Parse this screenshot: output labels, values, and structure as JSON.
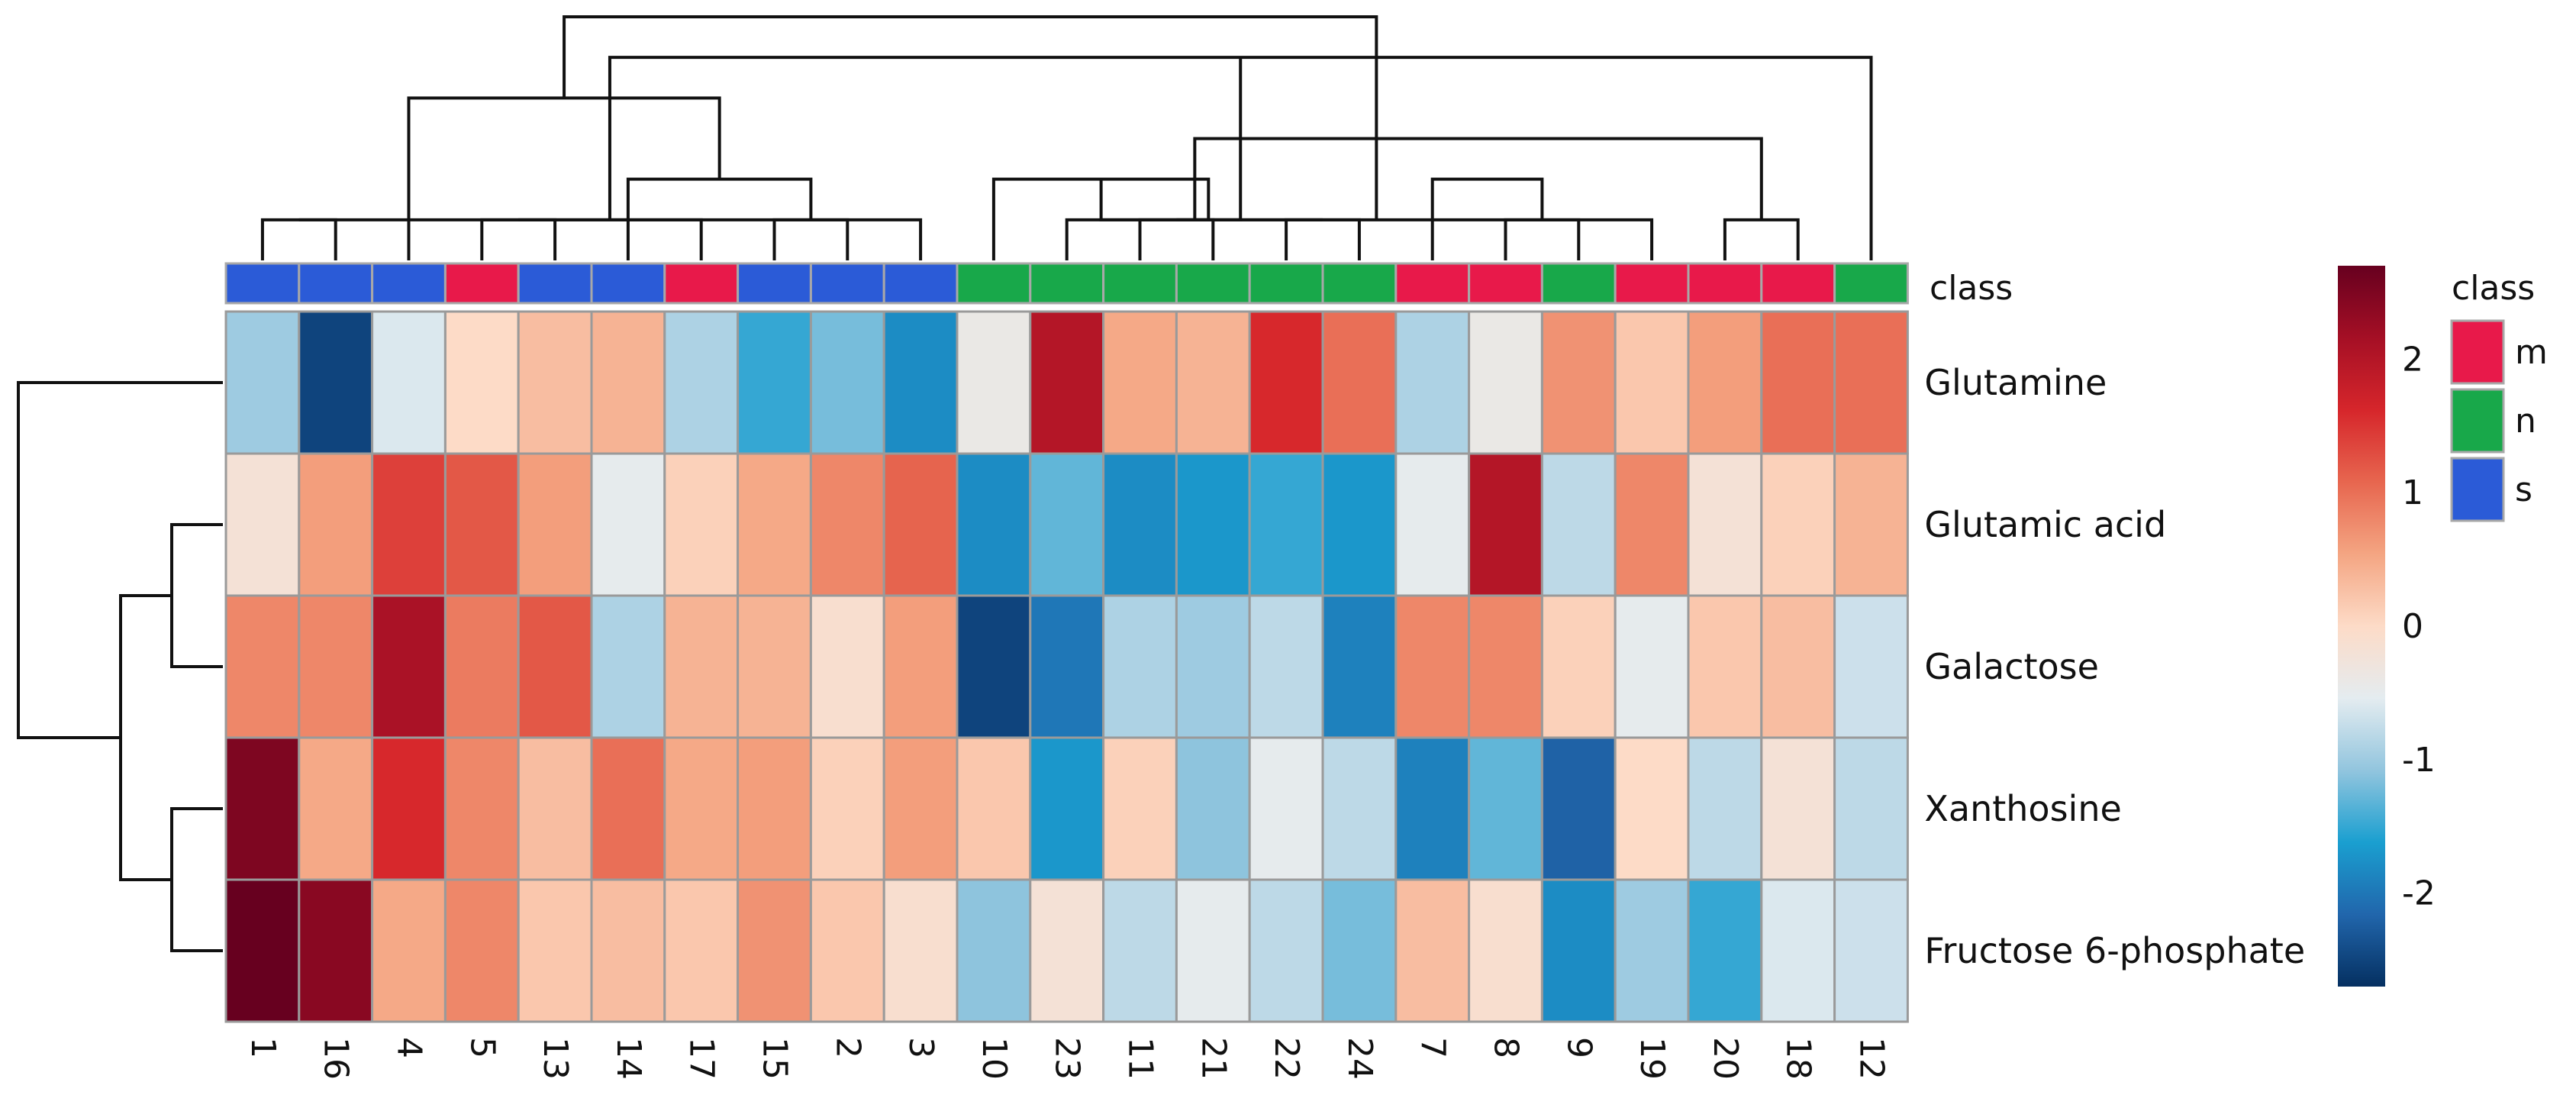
{
  "chart_data": {
    "type": "heatmap",
    "title": "",
    "columns": [
      "1",
      "16",
      "4",
      "5",
      "13",
      "14",
      "17",
      "15",
      "2",
      "3",
      "10",
      "23",
      "11",
      "21",
      "22",
      "24",
      "7",
      "8",
      "9",
      "19",
      "20",
      "18",
      "12"
    ],
    "column_classes": [
      "s",
      "s",
      "s",
      "m",
      "s",
      "s",
      "m",
      "s",
      "s",
      "s",
      "n",
      "n",
      "n",
      "n",
      "n",
      "n",
      "m",
      "m",
      "n",
      "m",
      "m",
      "m",
      "n"
    ],
    "rows": [
      "Glutamine",
      "Glutamic acid",
      "Galactose",
      "Xanthosine",
      "Fructose 6-phosphate"
    ],
    "values": [
      [
        -1.0,
        -2.5,
        -0.6,
        0.0,
        0.3,
        0.4,
        -0.9,
        -1.5,
        -1.2,
        -1.8,
        -0.4,
        2.0,
        0.5,
        0.4,
        1.6,
        1.0,
        -0.9,
        -0.4,
        0.7,
        0.2,
        0.6,
        1.0,
        1.0
      ],
      [
        -0.2,
        0.6,
        1.4,
        1.2,
        0.6,
        -0.5,
        0.1,
        0.5,
        0.8,
        1.1,
        -1.8,
        -1.3,
        -1.8,
        -1.7,
        -1.5,
        -1.7,
        -0.5,
        2.0,
        -0.8,
        0.8,
        -0.2,
        0.1,
        0.4
      ],
      [
        0.8,
        0.8,
        2.1,
        0.9,
        1.2,
        -0.9,
        0.4,
        0.4,
        -0.1,
        0.6,
        -2.5,
        -2.0,
        -0.9,
        -1.0,
        -0.8,
        -1.9,
        0.8,
        0.8,
        0.1,
        -0.5,
        0.2,
        0.3,
        -0.7
      ],
      [
        2.5,
        0.5,
        1.6,
        0.8,
        0.3,
        1.0,
        0.5,
        0.6,
        0.1,
        0.6,
        0.2,
        -1.7,
        0.1,
        -1.1,
        -0.5,
        -0.8,
        -1.9,
        -1.3,
        -2.2,
        0.0,
        -0.8,
        -0.2,
        -0.8
      ],
      [
        2.8,
        2.4,
        0.5,
        0.8,
        0.2,
        0.3,
        0.2,
        0.7,
        0.2,
        -0.1,
        -1.1,
        -0.2,
        -0.8,
        -0.5,
        -0.8,
        -1.2,
        0.3,
        -0.1,
        -1.8,
        -1.0,
        -1.5,
        -0.6,
        -0.7
      ]
    ],
    "classes_label": "class",
    "legend": {
      "title": "class",
      "entries": [
        {
          "label": "m",
          "color": "#e8194a"
        },
        {
          "label": "n",
          "color": "#18a84a"
        },
        {
          "label": "s",
          "color": "#2b5bd7"
        }
      ],
      "placement": "right"
    },
    "colorbar": {
      "range": [
        -2.7,
        2.7
      ],
      "ticks": [
        "2",
        "1",
        "0",
        "-1",
        "-2"
      ],
      "tick_values": [
        2,
        1,
        0,
        -1,
        -2
      ],
      "stops": [
        "#053061",
        "#2166ac",
        "#1a9fd0",
        "#92c5de",
        "#e4ecf0",
        "#fddbc7",
        "#f4a582",
        "#e7664f",
        "#d6262b",
        "#a50f25",
        "#67001f"
      ]
    },
    "column_dendrogram": [
      [
        0,
        1,
        1
      ],
      [
        3,
        4,
        1
      ],
      [
        7,
        8,
        1
      ],
      [
        9,
        23,
        1
      ],
      [
        6,
        24,
        1
      ],
      [
        5,
        25,
        2
      ],
      [
        26,
        27,
        3
      ],
      [
        2,
        28,
        4
      ],
      [
        22,
        29,
        5
      ],
      [
        12,
        13,
        1
      ],
      [
        14,
        15,
        1
      ],
      [
        31,
        32,
        1
      ],
      [
        11,
        33,
        1
      ],
      [
        10,
        34,
        2
      ],
      [
        17,
        18,
        1
      ],
      [
        20,
        21,
        1
      ],
      [
        19,
        36,
        1
      ],
      [
        37,
        16,
        2
      ],
      [
        38,
        35,
        3
      ],
      [
        39,
        30,
        6
      ]
    ],
    "row_dendrogram": [
      [
        3,
        4,
        1
      ],
      [
        1,
        2,
        1
      ],
      [
        5,
        6,
        2
      ],
      [
        0,
        7,
        4
      ]
    ]
  }
}
